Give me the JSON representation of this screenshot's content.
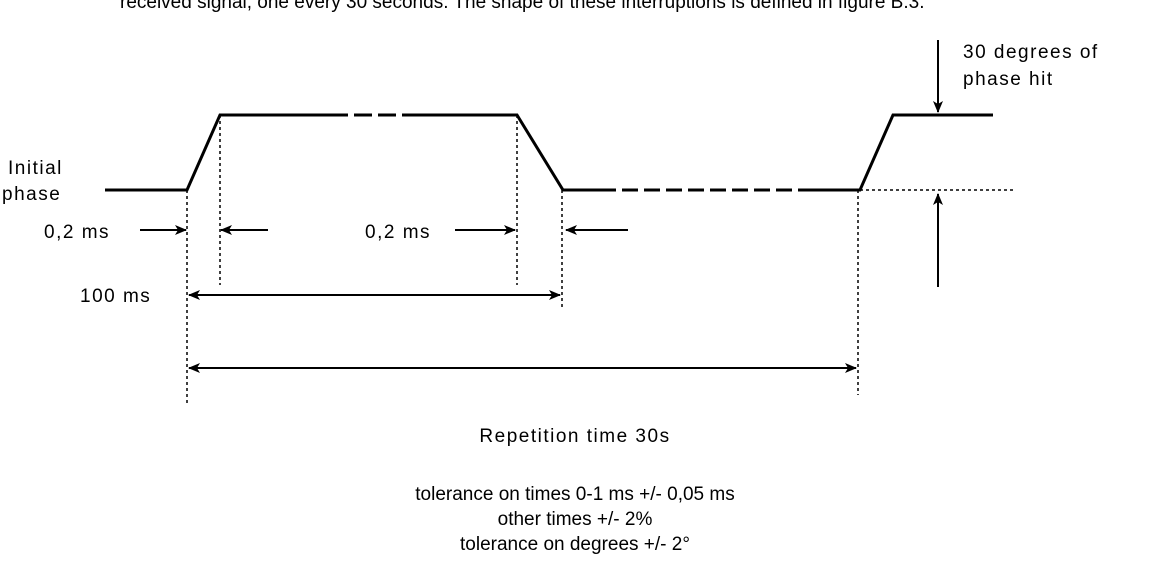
{
  "intro": "received signal, one every 30 seconds. The shape of these interruptions is defined in figure B.3.",
  "labels": {
    "phase_hit": [
      "30 degrees of",
      "phase hit"
    ],
    "initial_phase": [
      "Initial",
      "phase"
    ],
    "rise_time": "0,2 ms",
    "fall_time": "0,2 ms",
    "duration": "100 ms",
    "repetition": "Repetition time 30s"
  },
  "tolerances": [
    "tolerance on times 0-1 ms +/- 0,05 ms",
    "other times +/- 2%",
    "tolerance on degrees +/- 2°"
  ]
}
